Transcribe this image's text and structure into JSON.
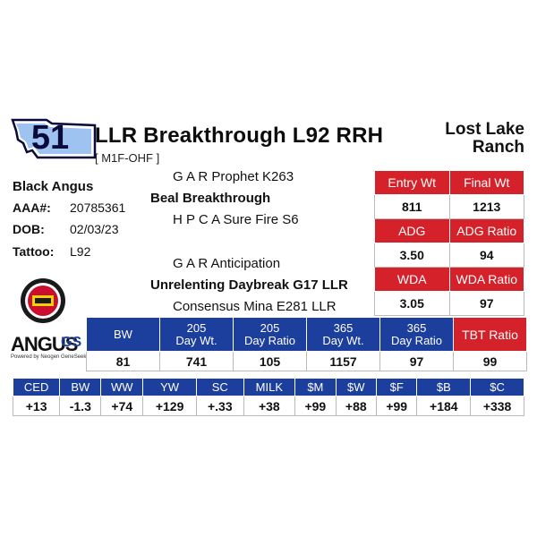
{
  "lot_number": "51",
  "animal_name": "LLR Breakthrough L92 RRH",
  "registration_code": "[ M1F-OHF ]",
  "ranch_line1": "Lost Lake",
  "ranch_line2": "Ranch",
  "breed": "Black Angus",
  "info": {
    "aaa_label": "AAA#:",
    "aaa_value": "20785361",
    "dob_label": "DOB:",
    "dob_value": "02/03/23",
    "tattoo_label": "Tattoo:",
    "tattoo_value": "L92"
  },
  "pedigree": {
    "sire_sire": "G A R Prophet K263",
    "sire": "Beal Breakthrough",
    "sire_dam": "H P C A Sure Fire S6",
    "dam_sire": "G A R Anticipation",
    "dam": "Unrelenting Daybreak G17 LLR",
    "dam_dam": "Consensus Mina E281 LLR"
  },
  "weights": {
    "entry_wt_label": "Entry Wt",
    "entry_wt": "811",
    "final_wt_label": "Final Wt",
    "final_wt": "1213",
    "adg_label": "ADG",
    "adg": "3.50",
    "adg_ratio_label": "ADG Ratio",
    "adg_ratio": "94",
    "wda_label": "WDA",
    "wda": "3.05",
    "wda_ratio_label": "WDA Ratio",
    "wda_ratio": "97"
  },
  "performance": {
    "headers": [
      {
        "l1": "BW",
        "l2": ""
      },
      {
        "l1": "205",
        "l2": "Day Wt."
      },
      {
        "l1": "205",
        "l2": "Day Ratio"
      },
      {
        "l1": "365",
        "l2": "Day Wt."
      },
      {
        "l1": "365",
        "l2": "Day Ratio"
      }
    ],
    "tbt_label": "TBT Ratio",
    "values": [
      "81",
      "741",
      "105",
      "1157",
      "97"
    ],
    "tbt_value": "99"
  },
  "epd": {
    "headers": [
      "CED",
      "BW",
      "WW",
      "YW",
      "SC",
      "MILK",
      "$M",
      "$W",
      "$F",
      "$B",
      "$C"
    ],
    "values": [
      "+13",
      "-1.3",
      "+74",
      "+129",
      "+.33",
      "+38",
      "+99",
      "+88",
      "+99",
      "+184",
      "+338"
    ]
  },
  "logo": {
    "word": "ANGUS",
    "gs": "GS",
    "sub": "Powered by Neogen GeneSeek"
  },
  "colors": {
    "red": "#d4212a",
    "blue": "#1c3e9c",
    "navy": "#0b0b3b"
  }
}
